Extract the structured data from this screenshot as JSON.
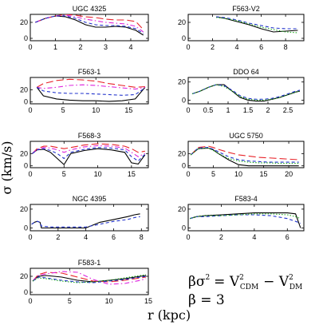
{
  "y_axis_label": "σ (km/s)",
  "x_axis_label": "r (kpc)",
  "formula": {
    "line1_prefix": "βσ",
    "line1_sup1": "2",
    "line1_eq": "= V",
    "line1_sup2": "2",
    "line1_sub2": "CDM",
    "line1_minus": "− V",
    "line1_sup3": "2",
    "line1_sub3": "DM",
    "line2": "β = 3"
  },
  "series_colors": {
    "solid": "#000000",
    "long_dash": "#e8242a",
    "dash_dot": "#dd22dd",
    "short_dash": "#2233cc",
    "dotted": "#22aa22"
  },
  "chart_data": [
    {
      "type": "line",
      "title": "UGC 4325",
      "xlim": [
        0,
        4.7
      ],
      "ylim": [
        -3,
        30
      ],
      "xticks": [
        0,
        1,
        2,
        3,
        4
      ],
      "yticks": [
        0,
        20
      ],
      "series": [
        {
          "style": "solid",
          "x": [
            0.2,
            0.6,
            1.0,
            1.4,
            1.8,
            2.2,
            2.6,
            3.0,
            3.4,
            3.8,
            4.2,
            4.5
          ],
          "y": [
            20,
            25,
            28,
            27,
            23,
            17,
            14,
            14,
            15,
            14,
            10,
            4
          ]
        },
        {
          "style": "long_dash",
          "x": [
            0.2,
            0.6,
            1.0,
            1.4,
            1.8,
            2.2,
            2.6,
            3.0,
            3.4,
            3.8,
            4.2,
            4.5
          ],
          "y": [
            20,
            25,
            28,
            30,
            29,
            27,
            26,
            24,
            23,
            23,
            21,
            11
          ]
        },
        {
          "style": "dash_dot",
          "x": [
            0.2,
            0.6,
            1.0,
            1.4,
            1.8,
            2.2,
            2.6,
            3.0,
            3.4,
            3.8,
            4.2,
            4.5
          ],
          "y": [
            20,
            25,
            28,
            29,
            27,
            24,
            22,
            20,
            19,
            18,
            15,
            8
          ]
        },
        {
          "style": "short_dash",
          "x": [
            0.2,
            0.6,
            1.0,
            1.4,
            1.8,
            2.2,
            2.6,
            3.0,
            3.4,
            3.8,
            4.2,
            4.5
          ],
          "y": [
            20,
            25,
            28,
            28,
            25,
            20,
            17,
            16,
            16,
            15,
            12,
            6
          ]
        }
      ]
    },
    {
      "type": "line",
      "title": "F563-V2",
      "xlim": [
        0,
        9.5
      ],
      "ylim": [
        -3,
        30
      ],
      "xticks": [
        0,
        2,
        4,
        6,
        8
      ],
      "yticks": [
        0,
        20
      ],
      "series": [
        {
          "style": "solid",
          "x": [
            2.3,
            3,
            4,
            5,
            6,
            7,
            8,
            9
          ],
          "y": [
            27,
            25,
            21,
            17,
            12,
            8,
            9,
            10
          ]
        },
        {
          "style": "short_dash",
          "x": [
            2.3,
            3,
            4,
            5,
            6,
            7,
            8,
            9
          ],
          "y": [
            27,
            26,
            23,
            19,
            16,
            13,
            12,
            12
          ]
        },
        {
          "style": "dotted",
          "x": [
            2.3,
            3,
            4,
            5,
            6,
            7,
            8,
            9
          ],
          "y": [
            26,
            25,
            22,
            18,
            14,
            11,
            8,
            7
          ]
        }
      ]
    },
    {
      "type": "line",
      "title": "F563-1",
      "xlim": [
        0,
        18
      ],
      "ylim": [
        -3,
        40
      ],
      "xticks": [
        0,
        5,
        10,
        15
      ],
      "yticks": [
        0,
        20
      ],
      "series": [
        {
          "style": "solid",
          "x": [
            1,
            2,
            4,
            6,
            8,
            10,
            12,
            14,
            16,
            17.5
          ],
          "y": [
            24,
            10,
            5,
            3,
            2,
            2,
            1,
            2,
            5,
            24
          ]
        },
        {
          "style": "long_dash",
          "x": [
            1,
            2,
            4,
            6,
            8,
            10,
            12,
            14,
            16,
            17.5
          ],
          "y": [
            24,
            30,
            35,
            37,
            36,
            34,
            30,
            27,
            24,
            25
          ]
        },
        {
          "style": "dash_dot",
          "x": [
            1,
            2,
            4,
            6,
            8,
            10,
            12,
            14,
            16,
            17.5
          ],
          "y": [
            24,
            22,
            24,
            27,
            28,
            27,
            25,
            23,
            21,
            24
          ]
        },
        {
          "style": "short_dash",
          "x": [
            1,
            2,
            4,
            6,
            8,
            10,
            12,
            14,
            16,
            17.5
          ],
          "y": [
            24,
            18,
            15,
            14,
            14,
            13,
            12,
            11,
            12,
            23
          ]
        }
      ]
    },
    {
      "type": "line",
      "title": "DDO 64",
      "xlim": [
        0,
        2.9
      ],
      "ylim": [
        -4,
        25
      ],
      "xticks": [
        0,
        0.5,
        1,
        1.5,
        2,
        2.5
      ],
      "yticks": [
        0,
        20
      ],
      "series": [
        {
          "style": "solid",
          "x": [
            0.1,
            0.3,
            0.5,
            0.7,
            0.9,
            1.1,
            1.3,
            1.5,
            1.7,
            1.9,
            2.1,
            2.3,
            2.5,
            2.7,
            2.8
          ],
          "y": [
            7,
            10,
            14,
            17,
            17,
            10,
            3,
            0,
            -1,
            -1,
            1,
            3,
            6,
            9,
            10
          ]
        },
        {
          "style": "short_dash",
          "x": [
            0.1,
            0.3,
            0.5,
            0.7,
            0.9,
            1.1,
            1.3,
            1.5,
            1.7,
            1.9,
            2.1,
            2.3,
            2.5,
            2.7,
            2.8
          ],
          "y": [
            7,
            10,
            14,
            17,
            16,
            11,
            5,
            2,
            1,
            1,
            2,
            4,
            7,
            10,
            11
          ]
        },
        {
          "style": "dotted",
          "x": [
            0.1,
            0.3,
            0.5,
            0.7,
            0.9,
            1.1,
            1.3,
            1.5,
            1.7,
            1.9,
            2.1,
            2.3,
            2.5,
            2.7,
            2.8
          ],
          "y": [
            7,
            10,
            14,
            17,
            15,
            10,
            4,
            1,
            0,
            0,
            1,
            3,
            6,
            9,
            10
          ]
        }
      ]
    },
    {
      "type": "line",
      "title": "F568-3",
      "xlim": [
        0,
        17.5
      ],
      "ylim": [
        -3,
        40
      ],
      "xticks": [
        0,
        5,
        10,
        15
      ],
      "yticks": [
        0,
        20
      ],
      "series": [
        {
          "style": "solid",
          "x": [
            0.3,
            1,
            2,
            3,
            4,
            5,
            6,
            8,
            10,
            12,
            14,
            15,
            16,
            17
          ],
          "y": [
            20,
            26,
            27,
            22,
            12,
            2,
            20,
            25,
            28,
            26,
            22,
            5,
            3,
            18
          ]
        },
        {
          "style": "long_dash",
          "x": [
            0.3,
            1,
            2,
            3,
            4,
            5,
            6,
            8,
            10,
            12,
            14,
            15,
            16,
            17
          ],
          "y": [
            20,
            28,
            32,
            32,
            30,
            28,
            30,
            34,
            36,
            35,
            32,
            28,
            22,
            24
          ]
        },
        {
          "style": "dash_dot",
          "x": [
            0.3,
            1,
            2,
            3,
            4,
            5,
            6,
            8,
            10,
            12,
            14,
            15,
            16,
            17
          ],
          "y": [
            20,
            27,
            30,
            29,
            26,
            22,
            26,
            31,
            33,
            32,
            29,
            22,
            15,
            20
          ]
        },
        {
          "style": "short_dash",
          "x": [
            0.3,
            1,
            2,
            3,
            4,
            5,
            6,
            8,
            10,
            12,
            14,
            15,
            16,
            17
          ],
          "y": [
            20,
            26,
            28,
            25,
            20,
            12,
            22,
            27,
            30,
            29,
            26,
            15,
            8,
            19
          ]
        }
      ]
    },
    {
      "type": "line",
      "title": "UGC 5750",
      "xlim": [
        0,
        23
      ],
      "ylim": [
        -3,
        40
      ],
      "xticks": [
        0,
        5,
        10,
        15,
        20
      ],
      "yticks": [
        0,
        20
      ],
      "series": [
        {
          "style": "solid",
          "x": [
            0.5,
            2,
            4,
            5,
            6,
            8,
            10,
            12,
            14,
            16,
            18,
            20,
            22
          ],
          "y": [
            18,
            28,
            29,
            26,
            20,
            10,
            2,
            0,
            0,
            0,
            0,
            0,
            0
          ]
        },
        {
          "style": "long_dash",
          "x": [
            0.5,
            2,
            4,
            5,
            6,
            8,
            10,
            12,
            14,
            16,
            18,
            20,
            22
          ],
          "y": [
            18,
            30,
            32,
            30,
            27,
            22,
            18,
            16,
            14,
            13,
            12,
            11,
            10
          ]
        },
        {
          "style": "short_dash",
          "x": [
            0.5,
            2,
            4,
            5,
            6,
            8,
            10,
            12,
            14,
            16,
            18,
            20,
            22
          ],
          "y": [
            18,
            29,
            30,
            27,
            23,
            15,
            10,
            8,
            7,
            6,
            6,
            6,
            6
          ]
        },
        {
          "style": "dotted",
          "x": [
            0.5,
            2,
            4,
            5,
            6,
            8,
            10,
            12,
            14,
            16,
            18,
            20,
            22
          ],
          "y": [
            18,
            28,
            29,
            25,
            20,
            12,
            8,
            6,
            5,
            5,
            4,
            4,
            4
          ]
        }
      ]
    },
    {
      "type": "line",
      "title": "NGC 4395",
      "xlim": [
        0,
        8.5
      ],
      "ylim": [
        -3,
        25
      ],
      "xticks": [
        0,
        2,
        4,
        6,
        8
      ],
      "yticks": [
        0,
        20
      ],
      "series": [
        {
          "style": "solid",
          "x": [
            0.1,
            0.3,
            0.5,
            0.7,
            0.8,
            1.5,
            2.5,
            3.5,
            4.0,
            5.0,
            6.0,
            7.0,
            7.5,
            7.9
          ],
          "y": [
            4,
            6,
            7,
            6,
            0,
            0,
            0,
            0,
            0,
            6,
            9,
            12,
            14,
            15
          ]
        },
        {
          "style": "short_dash",
          "x": [
            0.1,
            0.3,
            0.5,
            0.7,
            0.8,
            1.5,
            2.5,
            3.5,
            4.0,
            5.0,
            6.0,
            7.0,
            7.5,
            7.9
          ],
          "y": [
            4,
            6,
            7,
            6,
            2,
            1,
            1,
            1,
            1,
            4,
            7,
            9,
            11,
            12
          ]
        }
      ]
    },
    {
      "type": "line",
      "title": "F583-4",
      "xlim": [
        0,
        7
      ],
      "ylim": [
        -3,
        25
      ],
      "xticks": [
        0,
        2,
        4,
        6
      ],
      "yticks": [
        0,
        20
      ],
      "series": [
        {
          "style": "solid",
          "x": [
            0.1,
            0.5,
            1,
            2,
            3,
            4,
            5,
            6,
            6.5,
            6.8
          ],
          "y": [
            10,
            12,
            13,
            14,
            15,
            16,
            16,
            16,
            15,
            0
          ]
        },
        {
          "style": "short_dash",
          "x": [
            0.1,
            0.5,
            1,
            2,
            3,
            4,
            5,
            6,
            6.5,
            6.8
          ],
          "y": [
            10,
            12,
            12,
            13,
            14,
            14,
            13,
            10,
            7,
            5
          ]
        },
        {
          "style": "dotted",
          "x": [
            0.1,
            0.5,
            1,
            2,
            3,
            4,
            5,
            6,
            6.5,
            6.8
          ],
          "y": [
            10,
            12,
            13,
            13,
            14,
            15,
            15,
            14,
            12,
            10
          ]
        }
      ]
    },
    {
      "type": "line",
      "title": "F583-1",
      "xlim": [
        0,
        15
      ],
      "ylim": [
        -3,
        30
      ],
      "xticks": [
        0,
        5,
        10,
        15
      ],
      "yticks": [
        0,
        20
      ],
      "series": [
        {
          "style": "solid",
          "x": [
            0.3,
            1,
            2,
            4,
            6,
            8,
            10,
            12,
            14,
            14.7
          ],
          "y": [
            14,
            20,
            21,
            19,
            15,
            13,
            15,
            17,
            20,
            21
          ]
        },
        {
          "style": "long_dash",
          "x": [
            0.3,
            1,
            2,
            4,
            6,
            8,
            10,
            12,
            14,
            14.7
          ],
          "y": [
            14,
            22,
            25,
            24,
            19,
            14,
            13,
            15,
            18,
            19
          ]
        },
        {
          "style": "dash_dot",
          "x": [
            0.3,
            1,
            2,
            4,
            6,
            8,
            10,
            12,
            14,
            14.7
          ],
          "y": [
            14,
            21,
            23,
            26,
            25,
            16,
            10,
            11,
            15,
            17
          ]
        },
        {
          "style": "short_dash",
          "x": [
            0.3,
            1,
            2,
            4,
            6,
            8,
            10,
            12,
            14,
            14.7
          ],
          "y": [
            14,
            19,
            18,
            15,
            13,
            12,
            14,
            16,
            19,
            20
          ]
        },
        {
          "style": "dotted",
          "x": [
            0.3,
            1,
            2,
            4,
            6,
            8,
            10,
            12,
            14,
            14.7
          ],
          "y": [
            14,
            18,
            17,
            14,
            12,
            13,
            15,
            18,
            21,
            22
          ]
        }
      ]
    }
  ]
}
